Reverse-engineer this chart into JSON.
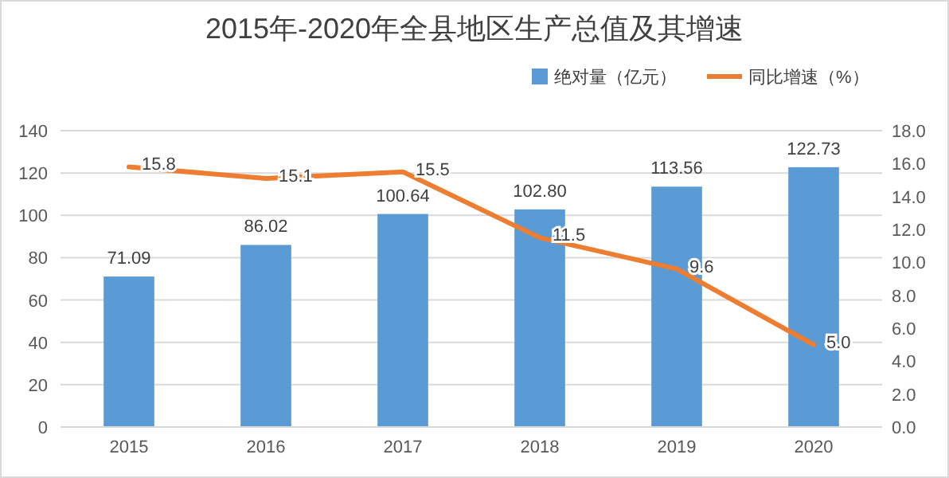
{
  "chart_data": {
    "type": "bar",
    "title": "2015年-2020年全县地区生产总值及其增速",
    "categories": [
      "2015",
      "2016",
      "2017",
      "2018",
      "2019",
      "2020"
    ],
    "series": [
      {
        "name": "绝对量（亿元）",
        "color": "#5b9bd5",
        "values": [
          71.09,
          86.02,
          100.64,
          102.8,
          113.56,
          122.73
        ],
        "value_labels": [
          "71.09",
          "86.02",
          "100.64",
          "102.80",
          "113.56",
          "122.73"
        ]
      },
      {
        "name": "同比增速（%）",
        "type": "line",
        "axis": "y2",
        "color": "#ed7d31",
        "values": [
          15.8,
          15.1,
          15.5,
          11.5,
          9.6,
          5.0
        ],
        "value_labels": [
          "15.8",
          "15.1",
          "15.5",
          "11.5",
          "9.6",
          "5.0"
        ]
      }
    ],
    "ylim": [
      0,
      140
    ],
    "yticks": [
      0,
      20,
      40,
      60,
      80,
      100,
      120,
      140
    ],
    "y2lim": [
      0,
      18
    ],
    "y2ticks": [
      {
        "value": 0,
        "label": "0.0"
      },
      {
        "value": 2,
        "label": "2.0"
      },
      {
        "value": 4,
        "label": "4.0"
      },
      {
        "value": 6,
        "label": "6.0"
      },
      {
        "value": 8,
        "label": "8.0"
      },
      {
        "value": 10,
        "label": "10.0"
      },
      {
        "value": 12,
        "label": "12.0"
      },
      {
        "value": 14,
        "label": "14.0"
      },
      {
        "value": 16,
        "label": "16.0"
      },
      {
        "value": 18,
        "label": "18.0"
      }
    ],
    "grid": "y",
    "legend": "top right",
    "marker": "none",
    "line_style": "solid"
  }
}
